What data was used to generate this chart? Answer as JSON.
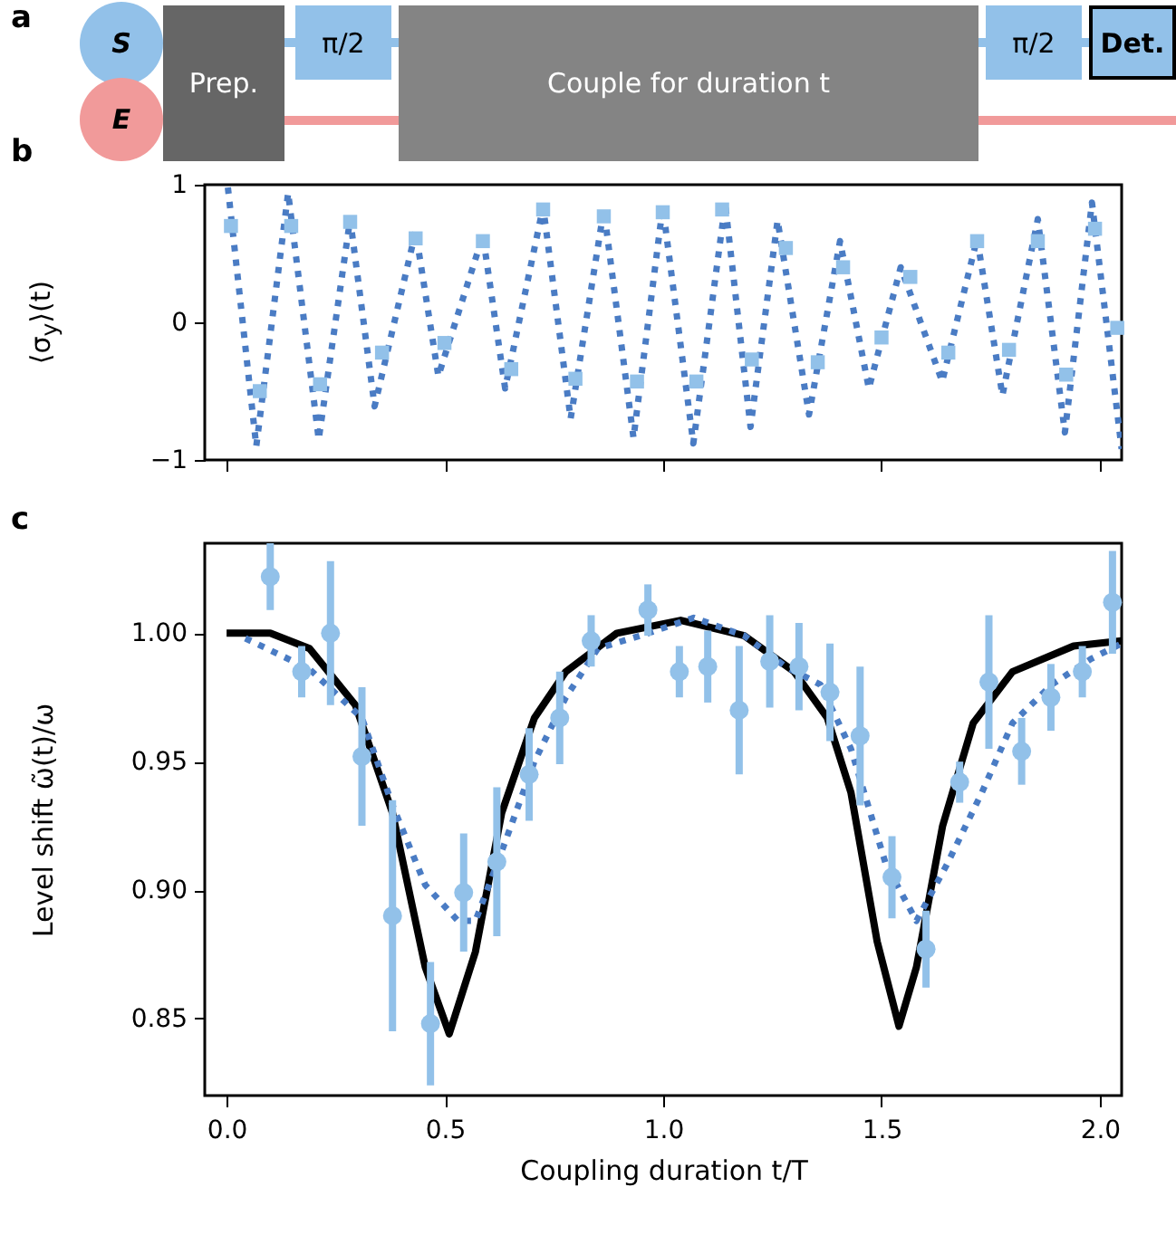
{
  "chart_data": [
    {
      "type": "other",
      "title": "a",
      "annotations": [
        "S",
        "E",
        "Prep.",
        "π/2",
        "Couple for duration t",
        "π/2",
        "Det."
      ]
    },
    {
      "type": "line",
      "title": "b",
      "ylabel": "⟨σ$_{y}$⟩(t)",
      "xlim": [
        -0.05,
        2.05
      ],
      "ylim": [
        -1,
        1
      ],
      "xticks": [
        0,
        0.5,
        1,
        1.5,
        2
      ],
      "yticks": [
        -1,
        0,
        1
      ],
      "tick_labels": "y",
      "grid": false,
      "series": [
        {
          "type": "line",
          "color": "#4a7cc4",
          "line_style": "dotted",
          "marker": "none",
          "x": [
            0.003,
            0.068,
            0.141,
            0.211,
            0.283,
            0.339,
            0.433,
            0.485,
            0.587,
            0.638,
            0.725,
            0.788,
            0.864,
            0.932,
            0.999,
            1.069,
            1.142,
            1.2,
            1.262,
            1.334,
            1.405,
            1.471,
            1.544,
            1.639,
            1.719,
            1.777,
            1.858,
            1.92,
            1.982,
            2.05
          ],
          "values": [
            0.98,
            -0.9,
            0.94,
            -0.85,
            0.75,
            -0.61,
            0.66,
            -0.39,
            0.63,
            -0.48,
            0.84,
            -0.7,
            0.82,
            -0.84,
            0.84,
            -0.88,
            0.86,
            -0.76,
            0.74,
            -0.67,
            0.59,
            -0.48,
            0.4,
            -0.43,
            0.61,
            -0.53,
            0.75,
            -0.8,
            0.87,
            -0.92
          ]
        },
        {
          "type": "scatter",
          "color": "#92c1e9",
          "marker": "square",
          "x": [
            0.01,
            0.076,
            0.148,
            0.214,
            0.283,
            0.356,
            0.433,
            0.499,
            0.587,
            0.652,
            0.725,
            0.799,
            0.864,
            0.94,
            0.999,
            1.076,
            1.135,
            1.203,
            1.281,
            1.354,
            1.412,
            1.5,
            1.566,
            1.653,
            1.719,
            1.792,
            1.858,
            1.923,
            1.989,
            2.04
          ],
          "values": [
            0.7,
            -0.5,
            0.7,
            -0.45,
            0.73,
            -0.22,
            0.61,
            -0.15,
            0.59,
            -0.34,
            0.82,
            -0.41,
            0.77,
            -0.43,
            0.8,
            -0.43,
            0.82,
            -0.27,
            0.54,
            -0.29,
            0.4,
            -0.11,
            0.33,
            -0.22,
            0.59,
            -0.2,
            0.59,
            -0.38,
            0.68,
            -0.04
          ]
        }
      ]
    },
    {
      "type": "line",
      "title": "c",
      "xlabel": "Coupling duration t/T",
      "ylabel": "Level shift ω̃(t)/ω",
      "xlim": [
        -0.05,
        2.05
      ],
      "ylim": [
        0.82,
        1.035
      ],
      "xticks": [
        {
          "value": 0,
          "label": "0.0"
        },
        {
          "value": 0.5,
          "label": "0.5"
        },
        {
          "value": 1,
          "label": "1.0"
        },
        {
          "value": 1.5,
          "label": "1.5"
        },
        {
          "value": 2,
          "label": "2.0"
        }
      ],
      "yticks": [
        {
          "value": 0.85,
          "label": "0.85"
        },
        {
          "value": 0.9,
          "label": "0.90"
        },
        {
          "value": 0.95,
          "label": "0.95"
        },
        {
          "value": 1,
          "label": "1.00"
        }
      ],
      "grid": false,
      "series": [
        {
          "type": "line",
          "color": "#000000",
          "line_style": "solid",
          "marker": "none",
          "x": [
            0,
            0.1,
            0.19,
            0.295,
            0.38,
            0.455,
            0.51,
            0.57,
            0.63,
            0.705,
            0.777,
            0.894,
            1.04,
            1.186,
            1.3,
            1.376,
            1.43,
            1.49,
            1.54,
            1.58,
            1.64,
            1.71,
            1.8,
            1.94,
            2.05
          ],
          "values": [
            1.0,
            1.0,
            0.994,
            0.972,
            0.93,
            0.87,
            0.844,
            0.876,
            0.93,
            0.967,
            0.985,
            1.0,
            1.005,
            0.999,
            0.985,
            0.967,
            0.938,
            0.88,
            0.847,
            0.87,
            0.925,
            0.965,
            0.985,
            0.995,
            0.997
          ]
        },
        {
          "type": "line",
          "color": "#4a7cc4",
          "line_style": "dotted",
          "marker": "none",
          "x": [
            0.043,
            0.19,
            0.31,
            0.38,
            0.455,
            0.53,
            0.57,
            0.63,
            0.705,
            0.777,
            0.85,
            0.966,
            1.07,
            1.186,
            1.28,
            1.36,
            1.43,
            1.51,
            1.58,
            1.65,
            1.73,
            1.8,
            1.89,
            1.98,
            2.05
          ],
          "values": [
            0.998,
            0.986,
            0.967,
            0.933,
            0.902,
            0.888,
            0.888,
            0.915,
            0.95,
            0.975,
            0.994,
            1.0,
            1.006,
            0.999,
            0.987,
            0.98,
            0.955,
            0.91,
            0.888,
            0.91,
            0.938,
            0.965,
            0.98,
            0.99,
            0.996
          ]
        },
        {
          "type": "scatter",
          "color": "#92c1e9",
          "marker": "circle",
          "x": [
            0.1,
            0.172,
            0.238,
            0.31,
            0.38,
            0.467,
            0.543,
            0.619,
            0.693,
            0.763,
            0.835,
            0.965,
            1.037,
            1.102,
            1.174,
            1.244,
            1.311,
            1.382,
            1.451,
            1.524,
            1.602,
            1.679,
            1.746,
            1.821,
            1.888,
            1.96,
            2.029
          ],
          "values": [
            1.022,
            0.985,
            1.0,
            0.952,
            0.89,
            0.848,
            0.899,
            0.911,
            0.945,
            0.967,
            0.997,
            1.009,
            0.985,
            0.987,
            0.97,
            0.989,
            0.987,
            0.977,
            0.96,
            0.905,
            0.877,
            0.942,
            0.981,
            0.954,
            0.975,
            0.985,
            1.012
          ],
          "errors": [
            0.013,
            0.01,
            0.028,
            0.027,
            0.045,
            0.024,
            0.023,
            0.029,
            0.018,
            0.018,
            0.01,
            0.01,
            0.01,
            0.014,
            0.025,
            0.018,
            0.017,
            0.019,
            0.027,
            0.016,
            0.015,
            0.008,
            0.026,
            0.013,
            0.013,
            0.01,
            0.02
          ]
        }
      ]
    }
  ]
}
